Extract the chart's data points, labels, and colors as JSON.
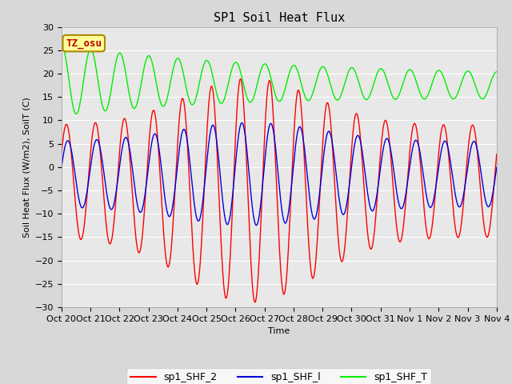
{
  "title": "SP1 Soil Heat Flux",
  "xlabel": "Time",
  "ylabel": "Soil Heat Flux (W/m2), SoilT (C)",
  "ylim": [
    -30,
    30
  ],
  "yticks": [
    -30,
    -25,
    -20,
    -15,
    -10,
    -5,
    0,
    5,
    10,
    15,
    20,
    25,
    30
  ],
  "xtick_labels": [
    "Oct 20",
    "Oct 21",
    "Oct 22",
    "Oct 23",
    "Oct 24",
    "Oct 25",
    "Oct 26",
    "Oct 27",
    "Oct 28",
    "Oct 29",
    "Oct 30",
    "Oct 31",
    "Nov 1",
    "Nov 2",
    "Nov 3",
    "Nov 4"
  ],
  "color_shf2": "#ff0000",
  "color_shf1": "#0000dd",
  "color_shft": "#00ee00",
  "bg_color": "#d8d8d8",
  "plot_bg": "#e8e8e8",
  "legend_labels": [
    "sp1_SHF_2",
    "sp1_SHF_l",
    "sp1_SHF_T"
  ],
  "tz_label": "TZ_osu",
  "title_fontsize": 11,
  "label_fontsize": 8,
  "tick_fontsize": 8
}
